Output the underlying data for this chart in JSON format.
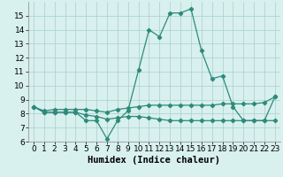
{
  "xlabel": "Humidex (Indice chaleur)",
  "x_values": [
    0,
    1,
    2,
    3,
    4,
    5,
    6,
    7,
    8,
    9,
    10,
    11,
    12,
    13,
    14,
    15,
    16,
    17,
    18,
    19,
    20,
    21,
    22,
    23
  ],
  "line1": [
    8.5,
    8.1,
    8.1,
    8.1,
    8.1,
    7.5,
    7.5,
    6.2,
    7.5,
    8.2,
    11.1,
    14.0,
    13.5,
    15.2,
    15.2,
    15.5,
    12.5,
    10.5,
    10.7,
    8.5,
    7.5,
    7.5,
    7.5,
    9.2
  ],
  "line2": [
    8.5,
    8.2,
    8.3,
    8.3,
    8.3,
    8.3,
    8.2,
    8.1,
    8.3,
    8.4,
    8.5,
    8.6,
    8.6,
    8.6,
    8.6,
    8.6,
    8.6,
    8.6,
    8.7,
    8.7,
    8.7,
    8.7,
    8.8,
    9.2
  ],
  "line3": [
    8.5,
    8.1,
    8.1,
    8.1,
    8.1,
    7.9,
    7.8,
    7.6,
    7.7,
    7.8,
    7.8,
    7.7,
    7.6,
    7.5,
    7.5,
    7.5,
    7.5,
    7.5,
    7.5,
    7.5,
    7.5,
    7.5,
    7.5,
    7.5
  ],
  "line_color": "#2d8b7a",
  "bg_color": "#d8f0ee",
  "grid_color": "#aacfcc",
  "ylim": [
    6,
    16
  ],
  "yticks": [
    6,
    7,
    8,
    9,
    10,
    11,
    12,
    13,
    14,
    15
  ],
  "xlim": [
    -0.5,
    23.5
  ],
  "xticks": [
    0,
    1,
    2,
    3,
    4,
    5,
    6,
    7,
    8,
    9,
    10,
    11,
    12,
    13,
    14,
    15,
    16,
    17,
    18,
    19,
    20,
    21,
    22,
    23
  ],
  "tick_fontsize": 6.5,
  "label_fontsize": 7.5
}
